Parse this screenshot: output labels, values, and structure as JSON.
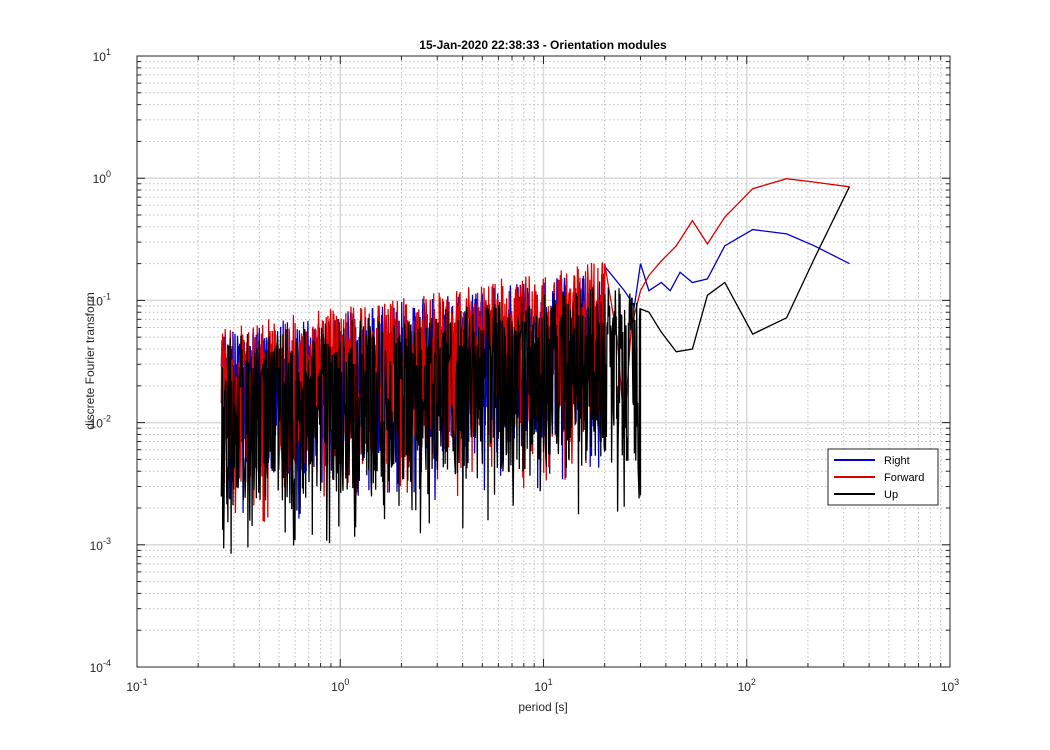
{
  "chart_data": {
    "type": "line",
    "title": "15-Jan-2020 22:38:33 - Orientation modules",
    "xlabel": "period [s]",
    "ylabel": "discrete Fourier transform",
    "xscale": "log",
    "yscale": "log",
    "xlim": [
      0.1,
      1000
    ],
    "ylim": [
      0.0001,
      10
    ],
    "grid": "major and minor (dotted)",
    "legend_position": "lower-right",
    "x_ticks": [
      {
        "base": "10",
        "exp": "-1"
      },
      {
        "base": "10",
        "exp": "0"
      },
      {
        "base": "10",
        "exp": "1"
      },
      {
        "base": "10",
        "exp": "2"
      },
      {
        "base": "10",
        "exp": "3"
      }
    ],
    "y_ticks": [
      {
        "base": "10",
        "exp": "-4"
      },
      {
        "base": "10",
        "exp": "-3"
      },
      {
        "base": "10",
        "exp": "-2"
      },
      {
        "base": "10",
        "exp": "-1"
      },
      {
        "base": "10",
        "exp": "0"
      },
      {
        "base": "10",
        "exp": "1"
      }
    ],
    "dense_region": {
      "x_range": [
        0.26,
        35
      ],
      "note_style": "noisy spectrum"
    },
    "series": [
      {
        "name": "Right",
        "color": "#0000cc",
        "envelope": {
          "low_start": 0.003,
          "low_end": 0.01,
          "high_start": 0.06,
          "high_end": 0.2
        },
        "tail": [
          [
            20,
            0.19
          ],
          [
            25,
            0.12
          ],
          [
            28,
            0.09
          ],
          [
            30,
            0.2
          ],
          [
            33,
            0.12
          ],
          [
            38,
            0.14
          ],
          [
            42,
            0.12
          ],
          [
            47,
            0.17
          ],
          [
            54,
            0.14
          ],
          [
            64,
            0.15
          ],
          [
            78,
            0.28
          ],
          [
            107,
            0.38
          ],
          [
            157,
            0.35
          ],
          [
            215,
            0.28
          ],
          [
            320,
            0.2
          ]
        ]
      },
      {
        "name": "Forward",
        "color": "#dd0000",
        "envelope": {
          "low_start": 0.003,
          "low_end": 0.01,
          "high_start": 0.06,
          "high_end": 0.25
        },
        "tail": [
          [
            20,
            0.2
          ],
          [
            23,
            0.05
          ],
          [
            25,
            0.009
          ],
          [
            27,
            0.06
          ],
          [
            30,
            0.12
          ],
          [
            33,
            0.16
          ],
          [
            38,
            0.21
          ],
          [
            45,
            0.28
          ],
          [
            54,
            0.45
          ],
          [
            64,
            0.29
          ],
          [
            78,
            0.48
          ],
          [
            107,
            0.82
          ],
          [
            157,
            0.99
          ],
          [
            215,
            0.93
          ],
          [
            320,
            0.85
          ]
        ]
      },
      {
        "name": "Up",
        "color": "#000000",
        "envelope": {
          "low_start": 0.002,
          "low_end": 0.005,
          "high_start": 0.05,
          "high_end": 0.15
        },
        "tail": [
          [
            30,
            0.085
          ],
          [
            33,
            0.08
          ],
          [
            38,
            0.055
          ],
          [
            45,
            0.038
          ],
          [
            54,
            0.04
          ],
          [
            64,
            0.11
          ],
          [
            78,
            0.14
          ],
          [
            107,
            0.053
          ],
          [
            157,
            0.072
          ],
          [
            215,
            0.22
          ],
          [
            320,
            0.85
          ]
        ]
      }
    ]
  }
}
